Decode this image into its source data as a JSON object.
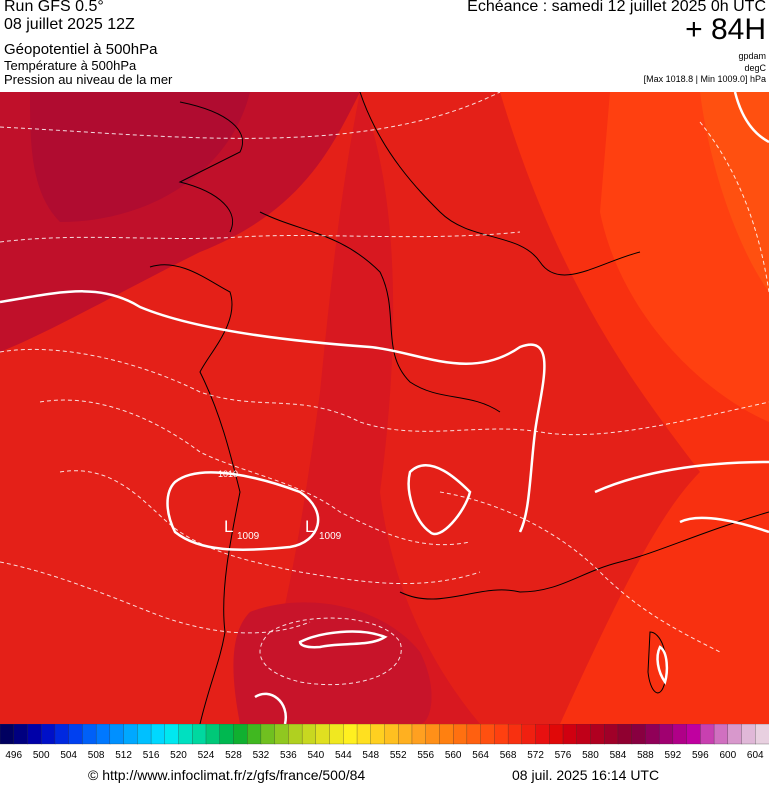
{
  "header": {
    "run": "Run GFS 0.5°",
    "date": "08 juillet 2025 12Z",
    "title": "Géopotentiel à 500hPa",
    "subtitle1": "Température à 500hPa",
    "subtitle2": "Pression au niveau de la mer",
    "echeance": "Echéance : samedi 12 juillet 2025 0h UTC",
    "lead": "+ 84H",
    "unit1": "gpdam",
    "unit2": "degC",
    "range": "[Max 1018.8 | Min 1009.0] hPa"
  },
  "map": {
    "labels": [
      "1010",
      "L",
      "1009",
      "L",
      "1009"
    ]
  },
  "legend": {
    "values": [
      496,
      500,
      504,
      508,
      512,
      516,
      520,
      524,
      528,
      532,
      536,
      540,
      544,
      548,
      552,
      556,
      560,
      564,
      568,
      572,
      576,
      580,
      584,
      588,
      592,
      596,
      600,
      604
    ],
    "colors": [
      "#000060",
      "#000080",
      "#0000a8",
      "#0010c8",
      "#0028e0",
      "#0040f0",
      "#0060f8",
      "#0078ff",
      "#0090ff",
      "#00a8ff",
      "#00c0ff",
      "#00d8ff",
      "#00e8f0",
      "#00e0c0",
      "#00d8a0",
      "#00c878",
      "#00b850",
      "#10b030",
      "#40b820",
      "#70c020",
      "#90c820",
      "#b0d020",
      "#c8d820",
      "#e0e020",
      "#f0e820",
      "#fff020",
      "#ffe020",
      "#ffd020",
      "#ffc020",
      "#ffb020",
      "#ffa020",
      "#ff9018",
      "#ff8010",
      "#ff7010",
      "#ff6010",
      "#ff5010",
      "#ff4010",
      "#f83010",
      "#f02010",
      "#e81010",
      "#e00808",
      "#d00010",
      "#c00018",
      "#b00020",
      "#a00028",
      "#900030",
      "#880040",
      "#900058",
      "#a00070",
      "#b00088",
      "#c000a0",
      "#c840b0",
      "#d070c0",
      "#d898cc",
      "#e0b8d8",
      "#e8d0e0"
    ]
  },
  "footer": {
    "url": "© http://www.infoclimat.fr/z/gfs/france/500/84",
    "timestamp": "08 juil. 2025 16:14 UTC"
  }
}
